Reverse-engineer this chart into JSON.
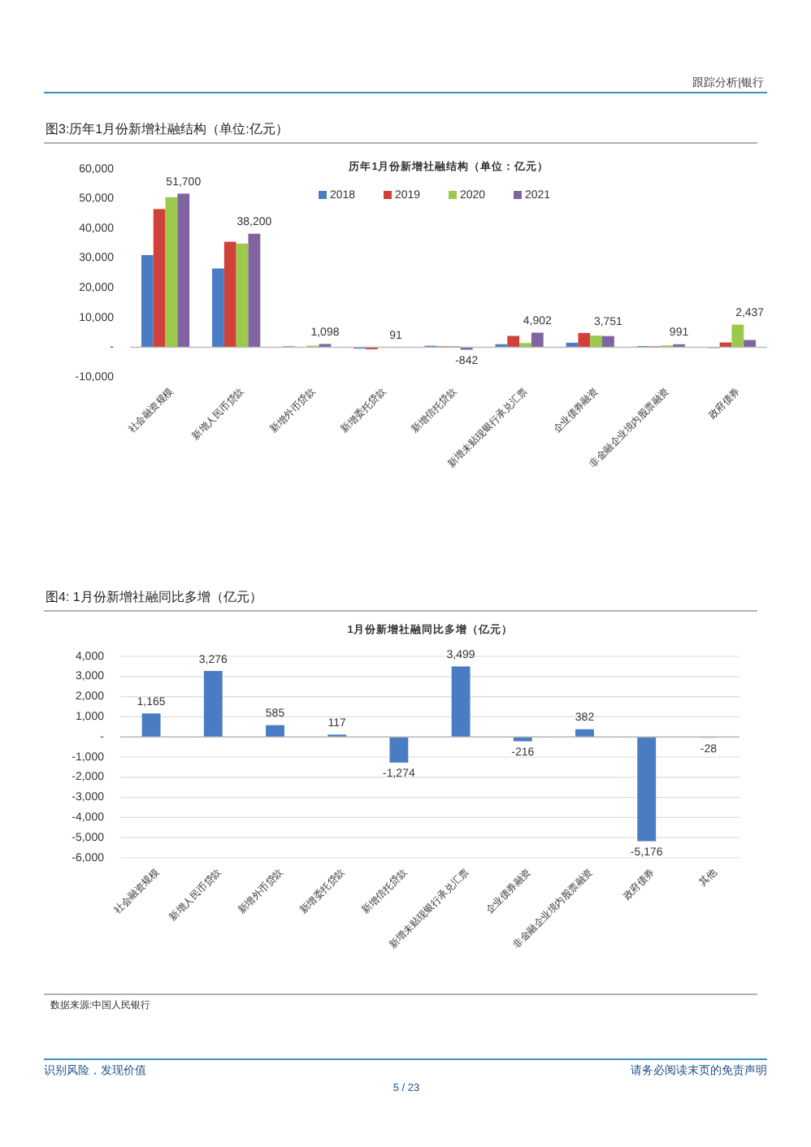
{
  "chart_data": [
    {
      "type": "bar",
      "title": "图3:历年1月份新增社融结构（单位:亿元）",
      "subtitle": "历年1月份新增社融结构（单位：亿元）",
      "annotations": [
        "跟踪分析|银行"
      ],
      "categories": [
        "社会融资规模",
        "新增人民币贷款",
        "新增外币贷款",
        "新增委托贷款",
        "新增信托贷款",
        "新增未贴现银行承兑汇票",
        "企业债券融资",
        "非金融企业境内股票融资",
        "政府债券"
      ],
      "series": [
        {
          "name": "2018",
          "color": "#4a7cc4",
          "values": [
            31000,
            26500,
            300,
            -500,
            500,
            1000,
            1500,
            400,
            0
          ]
        },
        {
          "name": "2019",
          "color": "#d0413a",
          "values": [
            46500,
            35500,
            null,
            -700,
            300,
            3800,
            4800,
            300,
            1600
          ]
        },
        {
          "name": "2020",
          "color": "#9bc94b",
          "values": [
            50500,
            34900,
            500,
            null,
            400,
            1400,
            3900,
            600,
            7600
          ]
        },
        {
          "name": "2021",
          "color": "#8064a2",
          "values": [
            51700,
            38200,
            1098,
            91,
            -842,
            4902,
            3751,
            991,
            2437
          ],
          "value_labels": [
            "51,700",
            "38,200",
            "1,098",
            "91",
            "-842",
            "4,902",
            "3,751",
            "991",
            "2,437"
          ]
        }
      ],
      "ylim": [
        -10000,
        60000
      ],
      "yticks": [
        {
          "value": -10000,
          "label": "-10,000"
        },
        {
          "value": 0,
          "label": "-"
        },
        {
          "value": 10000,
          "label": "10,000"
        },
        {
          "value": 20000,
          "label": "20,000"
        },
        {
          "value": 30000,
          "label": "30,000"
        },
        {
          "value": 40000,
          "label": "40,000"
        },
        {
          "value": 50000,
          "label": "50,000"
        },
        {
          "value": 60000,
          "label": "60,000"
        }
      ],
      "legend": "top"
    },
    {
      "type": "bar",
      "title": "图4: 1月份新增社融同比多增（亿元）",
      "subtitle": "1月份新增社融同比多增（亿元）",
      "annotations": [
        "数据来源:中国人民银行",
        "识别风险，发现价值",
        "请务必阅读末页的免责声明",
        "5 / 23"
      ],
      "categories": [
        "社会融资规模",
        "新增人民币贷款",
        "新增外币贷款",
        "新增委托贷款",
        "新增信托贷款",
        "新增未贴现银行承兑汇票",
        "企业债券融资",
        "非金融企业境内股票融资",
        "政府债券",
        "其他"
      ],
      "series": [
        {
          "color": "#4a7cc4",
          "values": [
            1165,
            3276,
            585,
            117,
            -1274,
            3499,
            -216,
            382,
            -5176,
            -28
          ],
          "value_labels": [
            "1,165",
            "3,276",
            "585",
            "117",
            "-1,274",
            "3,499",
            "-216",
            "382",
            "-5,176",
            "-28"
          ]
        }
      ],
      "ylim": [
        -6000,
        4000
      ],
      "yticks": [
        {
          "value": -6000,
          "label": "-6,000"
        },
        {
          "value": -5000,
          "label": "-5,000"
        },
        {
          "value": -4000,
          "label": "-4,000"
        },
        {
          "value": -3000,
          "label": "-3,000"
        },
        {
          "value": -2000,
          "label": "-2,000"
        },
        {
          "value": -1000,
          "label": "-1,000"
        },
        {
          "value": 0,
          "label": "-"
        },
        {
          "value": 1000,
          "label": "1,000"
        },
        {
          "value": 2000,
          "label": "2,000"
        },
        {
          "value": 3000,
          "label": "3,000"
        },
        {
          "value": 4000,
          "label": "4,000"
        }
      ],
      "grid": "y"
    }
  ]
}
